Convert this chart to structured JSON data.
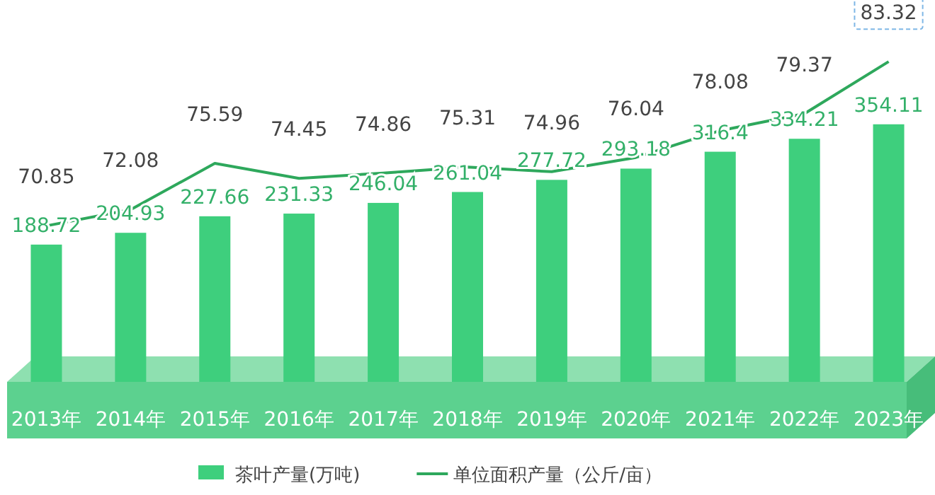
{
  "chart_data": {
    "type": "bar",
    "categories": [
      "2013年",
      "2014年",
      "2015年",
      "2016年",
      "2017年",
      "2018年",
      "2019年",
      "2020年",
      "2021年",
      "2022年",
      "2023年"
    ],
    "series": [
      {
        "name": "茶叶产量(万吨)",
        "color": "#3ecf7d",
        "values": [
          188.72,
          204.93,
          227.66,
          231.33,
          246.04,
          261.04,
          277.72,
          293.18,
          316.4,
          334.21,
          354.11
        ]
      },
      {
        "name": "单位面积产量（公斤/亩）",
        "type": "line",
        "axis": "y2",
        "color": "#2ea85c",
        "values": [
          70.85,
          72.08,
          75.59,
          74.45,
          74.86,
          75.31,
          74.96,
          76.04,
          78.08,
          79.37,
          83.32
        ]
      }
    ],
    "ylim": [
      0,
      525
    ],
    "y2lim": [
      59,
      88
    ],
    "data_labels": true,
    "legend": "bottom",
    "tick_labels": "x",
    "marker": "none"
  }
}
